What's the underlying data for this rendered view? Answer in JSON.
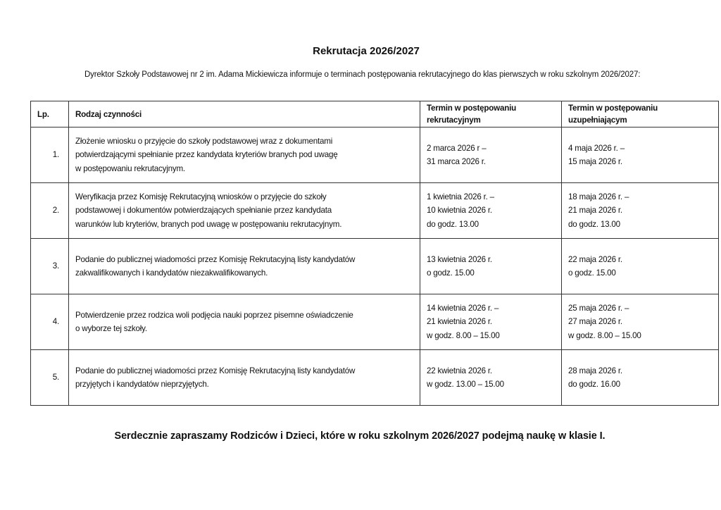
{
  "title": "Rekrutacja 2026/2027",
  "intro": "Dyrektor Szkoły Podstawowej nr 2 im. Adama Mickiewicza informuje o terminach postępowania rekrutacyjnego do klas pierwszych w roku szkolnym 2026/2027:",
  "table": {
    "headers": [
      "Lp.",
      "Rodzaj czynności",
      "Termin w postępowaniu rekrutacyjnym",
      "Termin  w postępowaniu uzupełniającym"
    ],
    "rows": [
      {
        "lp": "1.",
        "activity": [
          "Złożenie wniosku o przyjęcie do szkoły podstawowej wraz z dokumentami",
          "potwierdzającymi spełnianie przez kandydata kryteriów branych pod uwagę",
          "w postępowaniu rekrutacyjnym."
        ],
        "recruitment": [
          "2 marca 2026 r –",
          "31 marca 2026 r."
        ],
        "supplementary": [
          "4 maja 2026 r. –",
          "15 maja 2026 r."
        ]
      },
      {
        "lp": "2.",
        "activity": [
          "Weryfikacja przez Komisję Rekrutacyjną wniosków o przyjęcie do szkoły",
          "podstawowej i dokumentów potwierdzających spełnianie przez kandydata",
          "warunków lub kryteriów, branych pod uwagę w postępowaniu rekrutacyjnym."
        ],
        "recruitment": [
          "1 kwietnia 2026 r. –",
          "10 kwietnia 2026 r.",
          "do godz. 13.00"
        ],
        "supplementary": [
          "18 maja 2026 r. –",
          "21 maja 2026 r.",
          "do godz. 13.00"
        ]
      },
      {
        "lp": "3.",
        "activity": [
          "Podanie do publicznej wiadomości przez Komisję Rekrutacyjną listy kandydatów",
          "zakwalifikowanych i kandydatów niezakwalifikowanych."
        ],
        "recruitment": [
          "13 kwietnia 2026 r.",
          "o godz. 15.00"
        ],
        "supplementary": [
          "22 maja 2026 r.",
          "o godz. 15.00"
        ]
      },
      {
        "lp": "4.",
        "activity": [
          "Potwierdzenie przez rodzica woli podjęcia nauki poprzez pisemne oświadczenie",
          "o wyborze tej szkoły."
        ],
        "recruitment": [
          "14 kwietnia 2026 r. –",
          "21 kwietnia 2026 r.",
          "w godz. 8.00 – 15.00"
        ],
        "supplementary": [
          "25 maja 2026 r. –",
          "27 maja 2026 r.",
          "w godz. 8.00 – 15.00"
        ]
      },
      {
        "lp": "5.",
        "activity": [
          "Podanie do publicznej wiadomości przez Komisję Rekrutacyjną listy kandydatów",
          "przyjętych i kandydatów nieprzyjętych."
        ],
        "recruitment": [
          "22 kwietnia 2026 r.",
          "w godz. 13.00 – 15.00"
        ],
        "supplementary": [
          "28 maja 2026 r.",
          "do godz. 16.00"
        ]
      }
    ]
  },
  "footer": "Serdecznie zapraszamy Rodziców i Dzieci, które w roku szkolnym 2026/2027 podejmą naukę w klasie I."
}
